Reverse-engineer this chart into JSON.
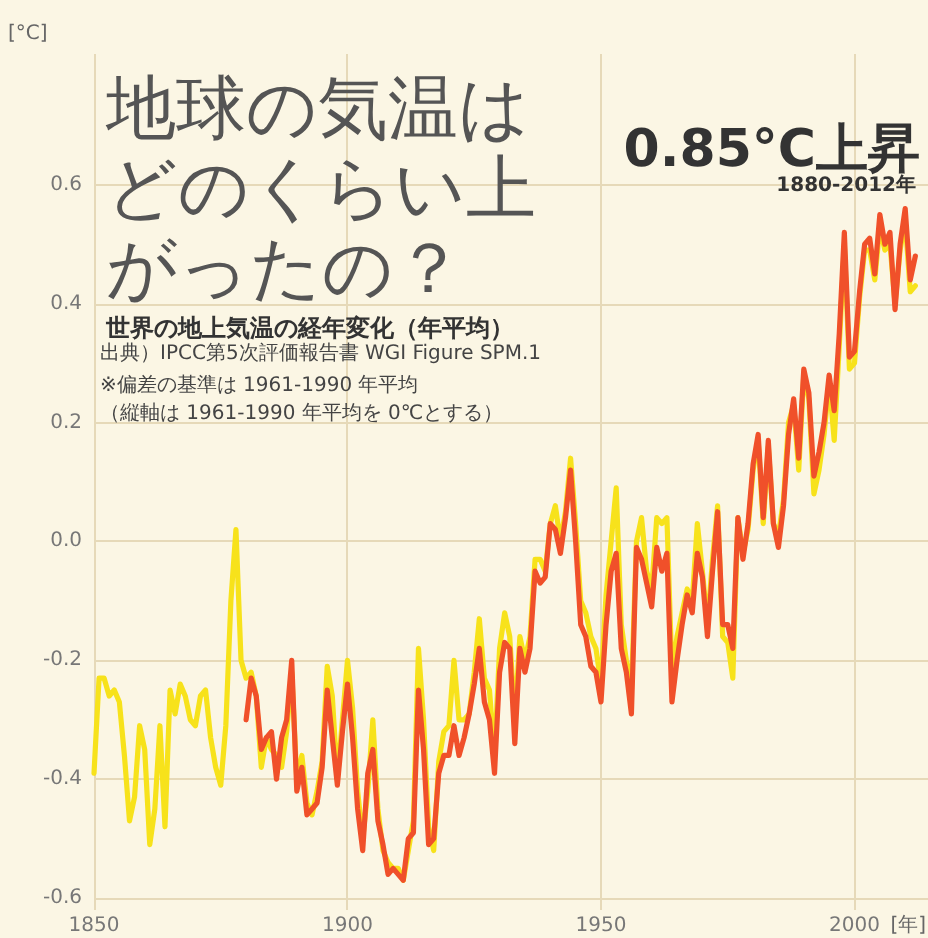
{
  "chart_data": {
    "type": "line",
    "title": "地球の気温はどのくらい上がったの？",
    "subtitle": "世界の地上気温の経年変化（年平均）",
    "xlabel": "[年]",
    "ylabel": "[°C]",
    "annotations": [
      "0.85°C上昇",
      "1880-2012年",
      "出典）IPCC第5次評価報告書 WGI Figure SPM.1",
      "※偏差の基準は 1961-1990 年平均",
      "（縦軸は 1961-1990 年平均を 0℃とする）"
    ],
    "xlim": [
      1850,
      2014.5
    ],
    "xticks": [
      1850,
      1900,
      1950,
      2000
    ],
    "ylim": [
      -0.62,
      0.82
    ],
    "yticks": [
      -0.6,
      -0.4,
      -0.2,
      {
        "value": 0,
        "label": "0.0"
      },
      0.2,
      0.4,
      0.6
    ],
    "grid": true,
    "series": [
      {
        "color": "#f7e21b",
        "x": [
          1850,
          1851,
          1852,
          1853,
          1854,
          1855,
          1856,
          1857,
          1858,
          1859,
          1860,
          1861,
          1862,
          1863,
          1864,
          1865,
          1866,
          1867,
          1868,
          1869,
          1870,
          1871,
          1872,
          1873,
          1874,
          1875,
          1876,
          1877,
          1878,
          1879,
          1880,
          1881,
          1882,
          1883,
          1884,
          1885,
          1886,
          1887,
          1888,
          1889,
          1890,
          1891,
          1892,
          1893,
          1894,
          1895,
          1896,
          1897,
          1898,
          1899,
          1900,
          1901,
          1902,
          1903,
          1904,
          1905,
          1906,
          1907,
          1908,
          1909,
          1910,
          1911,
          1912,
          1913,
          1914,
          1915,
          1916,
          1917,
          1918,
          1919,
          1920,
          1921,
          1922,
          1923,
          1924,
          1925,
          1926,
          1927,
          1928,
          1929,
          1930,
          1931,
          1932,
          1933,
          1934,
          1935,
          1936,
          1937,
          1938,
          1939,
          1940,
          1941,
          1942,
          1943,
          1944,
          1945,
          1946,
          1947,
          1948,
          1949,
          1950,
          1951,
          1952,
          1953,
          1954,
          1955,
          1956,
          1957,
          1958,
          1959,
          1960,
          1961,
          1962,
          1963,
          1964,
          1965,
          1966,
          1967,
          1968,
          1969,
          1970,
          1971,
          1972,
          1973,
          1974,
          1975,
          1976,
          1977,
          1978,
          1979,
          1980,
          1981,
          1982,
          1983,
          1984,
          1985,
          1986,
          1987,
          1988,
          1989,
          1990,
          1991,
          1992,
          1993,
          1994,
          1995,
          1996,
          1997,
          1998,
          1999,
          2000,
          2001,
          2002,
          2003,
          2004,
          2005,
          2006,
          2007,
          2008,
          2009,
          2010,
          2011,
          2012
        ],
        "values": [
          -0.39,
          -0.23,
          -0.23,
          -0.26,
          -0.25,
          -0.27,
          -0.36,
          -0.47,
          -0.43,
          -0.31,
          -0.35,
          -0.51,
          -0.45,
          -0.31,
          -0.48,
          -0.25,
          -0.29,
          -0.24,
          -0.26,
          -0.3,
          -0.31,
          -0.26,
          -0.25,
          -0.33,
          -0.38,
          -0.41,
          -0.31,
          -0.1,
          0.02,
          -0.2,
          -0.23,
          -0.22,
          -0.26,
          -0.38,
          -0.33,
          -0.35,
          -0.36,
          -0.38,
          -0.32,
          -0.22,
          -0.4,
          -0.36,
          -0.44,
          -0.46,
          -0.42,
          -0.37,
          -0.21,
          -0.26,
          -0.4,
          -0.3,
          -0.2,
          -0.28,
          -0.42,
          -0.5,
          -0.42,
          -0.3,
          -0.45,
          -0.52,
          -0.54,
          -0.55,
          -0.55,
          -0.57,
          -0.52,
          -0.47,
          -0.18,
          -0.3,
          -0.48,
          -0.52,
          -0.37,
          -0.32,
          -0.31,
          -0.2,
          -0.3,
          -0.3,
          -0.29,
          -0.22,
          -0.13,
          -0.23,
          -0.25,
          -0.36,
          -0.18,
          -0.12,
          -0.16,
          -0.3,
          -0.16,
          -0.2,
          -0.16,
          -0.03,
          -0.03,
          -0.05,
          0.03,
          0.06,
          0,
          0.05,
          0.14,
          0.03,
          -0.1,
          -0.12,
          -0.16,
          -0.18,
          -0.24,
          -0.09,
          0,
          0.09,
          -0.14,
          -0.2,
          -0.25,
          0,
          0.04,
          -0.05,
          -0.08,
          0.04,
          0.03,
          0.04,
          -0.22,
          -0.16,
          -0.12,
          -0.08,
          -0.1,
          0.03,
          -0.05,
          -0.14,
          -0.03,
          0.06,
          -0.16,
          -0.17,
          -0.23,
          0.04,
          -0.02,
          0.02,
          0.12,
          0.17,
          0.03,
          0.16,
          0.03,
          0.01,
          0.07,
          0.2,
          0.23,
          0.12,
          0.28,
          0.24,
          0.08,
          0.12,
          0.18,
          0.27,
          0.17,
          0.33,
          0.5,
          0.29,
          0.3,
          0.41,
          0.49,
          0.49,
          0.44,
          0.53,
          0.49,
          0.5,
          0.4,
          0.49,
          0.54,
          0.42,
          0.43
        ]
      },
      {
        "color": "#f0502a",
        "x": [
          1880,
          1881,
          1882,
          1883,
          1884,
          1885,
          1886,
          1887,
          1888,
          1889,
          1890,
          1891,
          1892,
          1893,
          1894,
          1895,
          1896,
          1897,
          1898,
          1899,
          1900,
          1901,
          1902,
          1903,
          1904,
          1905,
          1906,
          1907,
          1908,
          1909,
          1910,
          1911,
          1912,
          1913,
          1914,
          1915,
          1916,
          1917,
          1918,
          1919,
          1920,
          1921,
          1922,
          1923,
          1924,
          1925,
          1926,
          1927,
          1928,
          1929,
          1930,
          1931,
          1932,
          1933,
          1934,
          1935,
          1936,
          1937,
          1938,
          1939,
          1940,
          1941,
          1942,
          1943,
          1944,
          1945,
          1946,
          1947,
          1948,
          1949,
          1950,
          1951,
          1952,
          1953,
          1954,
          1955,
          1956,
          1957,
          1958,
          1959,
          1960,
          1961,
          1962,
          1963,
          1964,
          1965,
          1966,
          1967,
          1968,
          1969,
          1970,
          1971,
          1972,
          1973,
          1974,
          1975,
          1976,
          1977,
          1978,
          1979,
          1980,
          1981,
          1982,
          1983,
          1984,
          1985,
          1986,
          1987,
          1988,
          1989,
          1990,
          1991,
          1992,
          1993,
          1994,
          1995,
          1996,
          1997,
          1998,
          1999,
          2000,
          2001,
          2002,
          2003,
          2004,
          2005,
          2006,
          2007,
          2008,
          2009,
          2010,
          2011,
          2012
        ],
        "values": [
          -0.3,
          -0.23,
          -0.26,
          -0.35,
          -0.33,
          -0.32,
          -0.4,
          -0.33,
          -0.3,
          -0.2,
          -0.42,
          -0.38,
          -0.46,
          -0.45,
          -0.44,
          -0.38,
          -0.25,
          -0.33,
          -0.41,
          -0.32,
          -0.24,
          -0.33,
          -0.45,
          -0.52,
          -0.39,
          -0.35,
          -0.47,
          -0.51,
          -0.56,
          -0.55,
          -0.56,
          -0.57,
          -0.5,
          -0.49,
          -0.25,
          -0.35,
          -0.51,
          -0.5,
          -0.39,
          -0.36,
          -0.36,
          -0.31,
          -0.36,
          -0.33,
          -0.29,
          -0.24,
          -0.18,
          -0.27,
          -0.3,
          -0.39,
          -0.22,
          -0.17,
          -0.18,
          -0.34,
          -0.18,
          -0.22,
          -0.18,
          -0.05,
          -0.07,
          -0.06,
          0.03,
          0.02,
          -0.02,
          0.04,
          0.12,
          0,
          -0.14,
          -0.16,
          -0.21,
          -0.22,
          -0.27,
          -0.14,
          -0.05,
          -0.02,
          -0.18,
          -0.22,
          -0.29,
          -0.01,
          -0.03,
          -0.07,
          -0.11,
          -0.01,
          -0.05,
          -0.02,
          -0.27,
          -0.2,
          -0.14,
          -0.09,
          -0.12,
          -0.02,
          -0.06,
          -0.16,
          -0.05,
          0.05,
          -0.14,
          -0.14,
          -0.18,
          0.04,
          -0.03,
          0.03,
          0.13,
          0.18,
          0.04,
          0.17,
          0.03,
          -0.01,
          0.06,
          0.18,
          0.24,
          0.14,
          0.29,
          0.25,
          0.11,
          0.15,
          0.2,
          0.28,
          0.22,
          0.35,
          0.52,
          0.31,
          0.32,
          0.42,
          0.5,
          0.51,
          0.45,
          0.55,
          0.5,
          0.52,
          0.39,
          0.5,
          0.56,
          0.44,
          0.48
        ]
      }
    ]
  }
}
